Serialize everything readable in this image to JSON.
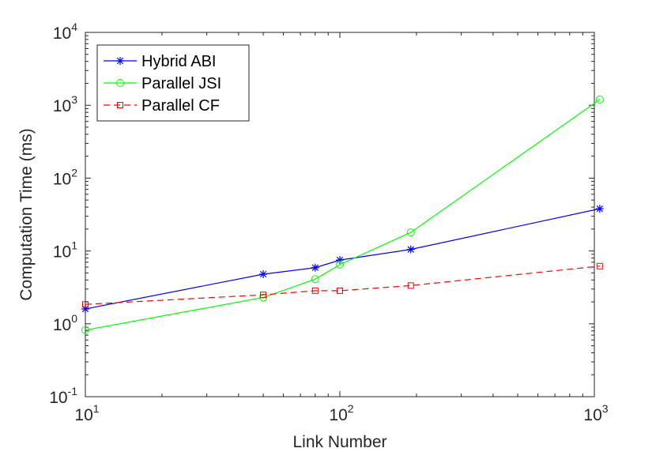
{
  "chart_data": {
    "type": "line",
    "xscale": "log",
    "yscale": "log",
    "xlim": [
      10,
      1000
    ],
    "ylim": [
      0.1,
      10000
    ],
    "xlabel": "Link Number",
    "ylabel": "Computation Time (ms)",
    "x_ticks": [
      {
        "base": "10",
        "exp": "1",
        "value": 10
      },
      {
        "base": "10",
        "exp": "2",
        "value": 100
      },
      {
        "base": "10",
        "exp": "3",
        "value": 1000
      }
    ],
    "y_ticks": [
      {
        "base": "10",
        "exp": "-1",
        "value": 0.1
      },
      {
        "base": "10",
        "exp": "0",
        "value": 1
      },
      {
        "base": "10",
        "exp": "1",
        "value": 10
      },
      {
        "base": "10",
        "exp": "2",
        "value": 100
      },
      {
        "base": "10",
        "exp": "3",
        "value": 1000
      },
      {
        "base": "10",
        "exp": "4",
        "value": 10000
      }
    ],
    "grid": false,
    "legend_position": "top-left",
    "series": [
      {
        "name": "Hybrid ABI",
        "color": "#0000ff",
        "line_style": "solid",
        "marker": "asterisk",
        "x": [
          10,
          50,
          80,
          100,
          190,
          1050
        ],
        "y": [
          1.6,
          4.8,
          5.9,
          7.5,
          10.5,
          38
        ]
      },
      {
        "name": "Parallel JSI",
        "color": "#00ff00",
        "line_style": "solid",
        "marker": "circle",
        "x": [
          10,
          50,
          80,
          100,
          190,
          1050
        ],
        "y": [
          0.82,
          2.3,
          4.1,
          6.5,
          18,
          1200
        ]
      },
      {
        "name": "Parallel CF",
        "color": "#ff0000",
        "line_style": "dashed",
        "marker": "square",
        "x": [
          10,
          50,
          80,
          100,
          190,
          1050
        ],
        "y": [
          1.85,
          2.5,
          2.85,
          2.85,
          3.35,
          6.2
        ]
      }
    ]
  }
}
